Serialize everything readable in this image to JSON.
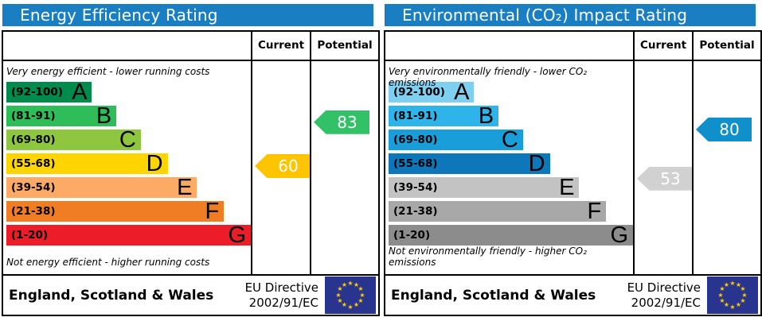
{
  "labels": {
    "current": "Current",
    "potential": "Potential"
  },
  "colors": {
    "header_blue": "#1a7ec2"
  },
  "eu_flag": {
    "background": "#29348e",
    "star_color": "#ffcc00",
    "star_count": 12,
    "name": "EU flag"
  },
  "panels": [
    {
      "title": "Energy Efficiency Rating",
      "top_caption": "Very energy efficient - lower running costs",
      "bottom_caption": "Not energy efficient - higher running costs",
      "bands": [
        {
          "label": "A",
          "range": "(92-100)",
          "min": 92,
          "max": 100,
          "width_pct": 35,
          "color": "#008a4c"
        },
        {
          "label": "B",
          "range": "(81-91)",
          "min": 81,
          "max": 91,
          "width_pct": 45,
          "color": "#2ebd59"
        },
        {
          "label": "C",
          "range": "(69-80)",
          "min": 69,
          "max": 80,
          "width_pct": 55,
          "color": "#8ec63f"
        },
        {
          "label": "D",
          "range": "(55-68)",
          "min": 55,
          "max": 68,
          "width_pct": 66,
          "color": "#ffd500"
        },
        {
          "label": "E",
          "range": "(39-54)",
          "min": 39,
          "max": 54,
          "width_pct": 78,
          "color": "#fcaa65"
        },
        {
          "label": "F",
          "range": "(21-38)",
          "min": 21,
          "max": 38,
          "width_pct": 89,
          "color": "#f07d23"
        },
        {
          "label": "G",
          "range": "(1-20)",
          "min": 1,
          "max": 20,
          "width_pct": 100,
          "color": "#ed1c29"
        }
      ],
      "current": {
        "value": 60,
        "band": "D",
        "color": "#fdc400"
      },
      "potential": {
        "value": 83,
        "band": "B",
        "color": "#33c168"
      },
      "footer": {
        "region": "England, Scotland & Wales",
        "directive_line1": "EU Directive",
        "directive_line2": "2002/91/EC"
      }
    },
    {
      "title": "Environmental (CO₂) Impact Rating",
      "top_caption": "Very environmentally friendly - lower CO₂ emissions",
      "bottom_caption": "Not environmentally friendly - higher CO₂ emissions",
      "bands": [
        {
          "label": "A",
          "range": "(92-100)",
          "min": 92,
          "max": 100,
          "width_pct": 35,
          "color": "#7ecff0"
        },
        {
          "label": "B",
          "range": "(81-91)",
          "min": 81,
          "max": 91,
          "width_pct": 45,
          "color": "#2fb4e9"
        },
        {
          "label": "C",
          "range": "(69-80)",
          "min": 69,
          "max": 80,
          "width_pct": 55,
          "color": "#1a9ed9"
        },
        {
          "label": "D",
          "range": "(55-68)",
          "min": 55,
          "max": 68,
          "width_pct": 66,
          "color": "#0d77b9"
        },
        {
          "label": "E",
          "range": "(39-54)",
          "min": 39,
          "max": 54,
          "width_pct": 78,
          "color": "#c3c3c3"
        },
        {
          "label": "F",
          "range": "(21-38)",
          "min": 21,
          "max": 38,
          "width_pct": 89,
          "color": "#a8a8a8"
        },
        {
          "label": "G",
          "range": "(1-20)",
          "min": 1,
          "max": 20,
          "width_pct": 100,
          "color": "#8c8c8c"
        }
      ],
      "current": {
        "value": 53,
        "band": "E",
        "color": "#d1d1d1"
      },
      "potential": {
        "value": 80,
        "band": "C",
        "color": "#0f90ca"
      },
      "footer": {
        "region": "England, Scotland & Wales",
        "directive_line1": "EU Directive",
        "directive_line2": "2002/91/EC"
      }
    }
  ],
  "chart_data": [
    {
      "type": "bar",
      "title": "Energy Efficiency Rating",
      "categories": [
        "A (92-100)",
        "B (81-91)",
        "C (69-80)",
        "D (55-68)",
        "E (39-54)",
        "F (21-38)",
        "G (1-20)"
      ],
      "band_bar_widths_pct": [
        35,
        45,
        55,
        66,
        78,
        89,
        100
      ],
      "series": [
        {
          "name": "Current",
          "value": 60,
          "band": "D"
        },
        {
          "name": "Potential",
          "value": 83,
          "band": "B"
        }
      ],
      "scale_range": [
        1,
        100
      ],
      "top_annotation": "Very energy efficient - lower running costs",
      "bottom_annotation": "Not energy efficient - higher running costs",
      "footer": "England, Scotland & Wales — EU Directive 2002/91/EC"
    },
    {
      "type": "bar",
      "title": "Environmental (CO₂) Impact Rating",
      "categories": [
        "A (92-100)",
        "B (81-91)",
        "C (69-80)",
        "D (55-68)",
        "E (39-54)",
        "F (21-38)",
        "G (1-20)"
      ],
      "band_bar_widths_pct": [
        35,
        45,
        55,
        66,
        78,
        89,
        100
      ],
      "series": [
        {
          "name": "Current",
          "value": 53,
          "band": "E"
        },
        {
          "name": "Potential",
          "value": 80,
          "band": "C"
        }
      ],
      "scale_range": [
        1,
        100
      ],
      "top_annotation": "Very environmentally friendly - lower CO₂ emissions",
      "bottom_annotation": "Not environmentally friendly - higher CO₂ emissions",
      "footer": "England, Scotland & Wales — EU Directive 2002/91/EC"
    }
  ]
}
